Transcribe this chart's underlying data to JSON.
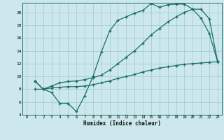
{
  "xlabel": "Humidex (Indice chaleur)",
  "bg_color": "#cce8ec",
  "grid_color": "#a0c8d0",
  "line_color": "#1a6e6a",
  "xlim": [
    -0.5,
    23.5
  ],
  "ylim": [
    4,
    21.5
  ],
  "xticks": [
    0,
    1,
    2,
    3,
    4,
    5,
    6,
    7,
    8,
    9,
    10,
    11,
    12,
    13,
    14,
    15,
    16,
    17,
    18,
    19,
    20,
    21,
    22,
    23
  ],
  "yticks": [
    4,
    6,
    8,
    10,
    12,
    14,
    16,
    18,
    20
  ],
  "line1_x": [
    1,
    2,
    3,
    4,
    5,
    6,
    7,
    8,
    9,
    10,
    11,
    12,
    13,
    14,
    15,
    16,
    17,
    18,
    19,
    20,
    21,
    22,
    23
  ],
  "line1_y": [
    9.3,
    8.0,
    7.5,
    5.8,
    5.8,
    4.5,
    7.0,
    10.0,
    13.8,
    17.1,
    18.8,
    19.3,
    19.9,
    20.3,
    21.4,
    20.8,
    21.2,
    21.3,
    21.3,
    20.5,
    19.1,
    16.7,
    12.3
  ],
  "line2_x": [
    1,
    2,
    3,
    4,
    5,
    6,
    7,
    8,
    9,
    10,
    11,
    12,
    13,
    14,
    15,
    16,
    17,
    18,
    19,
    20,
    21,
    22,
    23
  ],
  "line2_y": [
    9.3,
    8.0,
    8.5,
    9.0,
    9.2,
    9.3,
    9.5,
    9.8,
    10.2,
    11.0,
    12.0,
    13.0,
    14.0,
    15.2,
    16.5,
    17.5,
    18.5,
    19.3,
    20.0,
    20.5,
    20.5,
    19.0,
    12.3
  ],
  "line3_x": [
    1,
    2,
    3,
    4,
    5,
    6,
    7,
    8,
    9,
    10,
    11,
    12,
    13,
    14,
    15,
    16,
    17,
    18,
    19,
    20,
    21,
    22,
    23
  ],
  "line3_y": [
    8.0,
    8.0,
    8.2,
    8.3,
    8.4,
    8.4,
    8.5,
    8.7,
    9.0,
    9.3,
    9.7,
    10.0,
    10.3,
    10.7,
    11.0,
    11.3,
    11.5,
    11.7,
    11.9,
    12.0,
    12.1,
    12.2,
    12.3
  ]
}
